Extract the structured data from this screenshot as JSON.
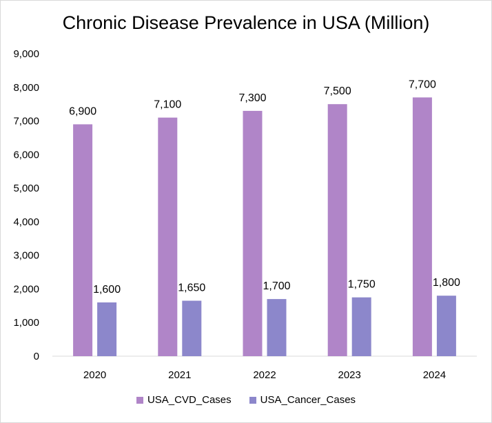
{
  "chart_data": {
    "type": "bar",
    "title": "Chronic Disease Prevalence in USA (Million)",
    "categories": [
      "2020",
      "2021",
      "2022",
      "2023",
      "2024"
    ],
    "series": [
      {
        "name": "USA_CVD_Cases",
        "values": [
          6900,
          7100,
          7300,
          7500,
          7700
        ],
        "color": "#b085c8"
      },
      {
        "name": "USA_Cancer_Cases",
        "values": [
          1600,
          1650,
          1700,
          1750,
          1800
        ],
        "color": "#8c87cb"
      }
    ],
    "ylim": [
      0,
      9000
    ],
    "yticks": [
      0,
      1000,
      2000,
      3000,
      4000,
      5000,
      6000,
      7000,
      8000,
      9000
    ],
    "grid": false,
    "legend": "bottom",
    "xlabel": "",
    "ylabel": ""
  }
}
